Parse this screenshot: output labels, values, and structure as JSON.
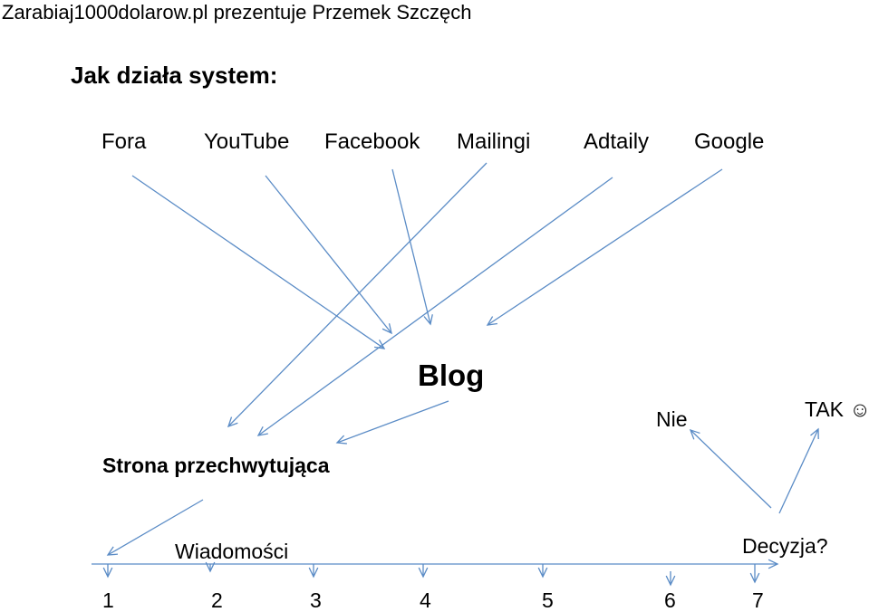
{
  "header": {
    "title": "Zarabiaj1000dolarow.pl prezentuje Przemek Szczęch"
  },
  "heading": "Jak działa system:",
  "sources": [
    "Fora",
    "YouTube",
    "Facebook",
    "Mailingi",
    "Adtaily",
    "Google"
  ],
  "blog": "Blog",
  "capture_page": "Strona przechwytująca",
  "messages": "Wiadomości",
  "decision": {
    "label": "Decyzja?",
    "no": "Nie",
    "yes": "TAK",
    "yes_smiley": "☺"
  },
  "steps": [
    "1",
    "2",
    "3",
    "4",
    "5",
    "6",
    "7"
  ],
  "colors": {
    "arrow": "#5B8CC6",
    "text": "#000000"
  }
}
